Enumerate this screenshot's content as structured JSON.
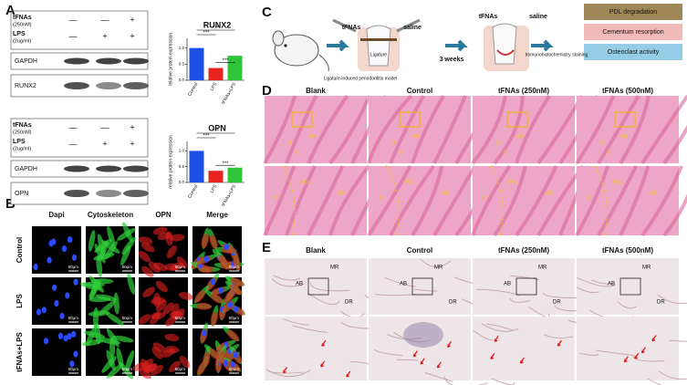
{
  "panel_labels": [
    "A",
    "B",
    "C",
    "D",
    "E"
  ],
  "blots": [
    {
      "conditions": [
        {
          "name": "tFNAs",
          "unit": "(250nM)",
          "signs": [
            "—",
            "—",
            "+"
          ]
        },
        {
          "name": "LPS",
          "unit": "(2ug/ml)",
          "signs": [
            "—",
            "+",
            "+"
          ]
        }
      ],
      "bands": [
        "GAPDH",
        "RUNX2"
      ]
    },
    {
      "conditions": [
        {
          "name": "tFNAs",
          "unit": "(250nM)",
          "signs": [
            "—",
            "—",
            "+"
          ]
        },
        {
          "name": "LPS",
          "unit": "(2ug/ml)",
          "signs": [
            "—",
            "+",
            "+"
          ]
        }
      ],
      "bands": [
        "GAPDH",
        "OPN"
      ]
    }
  ],
  "chart_data": [
    {
      "type": "bar",
      "title": "RUNX2",
      "y_label": "relative protein expression",
      "categories": [
        "Control",
        "LPS",
        "tFNAs+LPS"
      ],
      "values": [
        1.0,
        0.38,
        0.76
      ],
      "colors": [
        "#1d4fe6",
        "#e8231f",
        "#2fc43a"
      ],
      "ylim": [
        0,
        1.3
      ],
      "yticks": [
        {
          "value": 0,
          "label": "0.0"
        },
        {
          "value": 0.5,
          "label": "0.5"
        },
        {
          "value": 1,
          "label": "1.0"
        }
      ],
      "significance": [
        "***",
        "***",
        "***"
      ]
    },
    {
      "type": "bar",
      "title": "OPN",
      "y_label": "relative protein expression",
      "categories": [
        "Control",
        "LPS",
        "tFNAs+LPS"
      ],
      "values": [
        1.0,
        0.37,
        0.47
      ],
      "colors": [
        "#1d4fe6",
        "#e8231f",
        "#2fc43a"
      ],
      "ylim": [
        0,
        1.3
      ],
      "yticks": [
        {
          "value": 0,
          "label": "0.0"
        },
        {
          "value": 0.5,
          "label": "0.5"
        },
        {
          "value": 1,
          "label": "1.0"
        }
      ],
      "significance": [
        "***",
        "***",
        "***"
      ]
    }
  ],
  "fluorescence": {
    "columns": [
      "Dapi",
      "Cytoskeleton",
      "OPN",
      "Merge"
    ],
    "rows": [
      "Control",
      "LPS",
      "tFNAs+LPS"
    ],
    "scale_bar": "50μm"
  },
  "schematic": {
    "left_drug": "tFNAs",
    "left_control": "saline",
    "ligature": "Ligature",
    "model": "Ligature-induced periodontitis model",
    "duration": "3 weeks",
    "right_drug": "tFNAs",
    "right_control": "saline",
    "staining": "Immunohistochemistry staining",
    "outcomes": [
      "PDL degradation",
      "Cementum resorption",
      "Osteoclast activity"
    ]
  },
  "he_staining": {
    "columns": [
      "Blank",
      "Control",
      "tFNAs (250nM)",
      "tFNAs (500nM)"
    ],
    "top_labels": [
      "D",
      "AB",
      "C"
    ],
    "bottom_labels": [
      "D",
      "PDL",
      "AB"
    ]
  },
  "ihc_staining": {
    "columns": [
      "Blank",
      "Control",
      "tFNAs (250nM)",
      "tFNAs (500nM)"
    ],
    "top_labels": [
      "MR",
      "AB",
      "DR"
    ]
  }
}
